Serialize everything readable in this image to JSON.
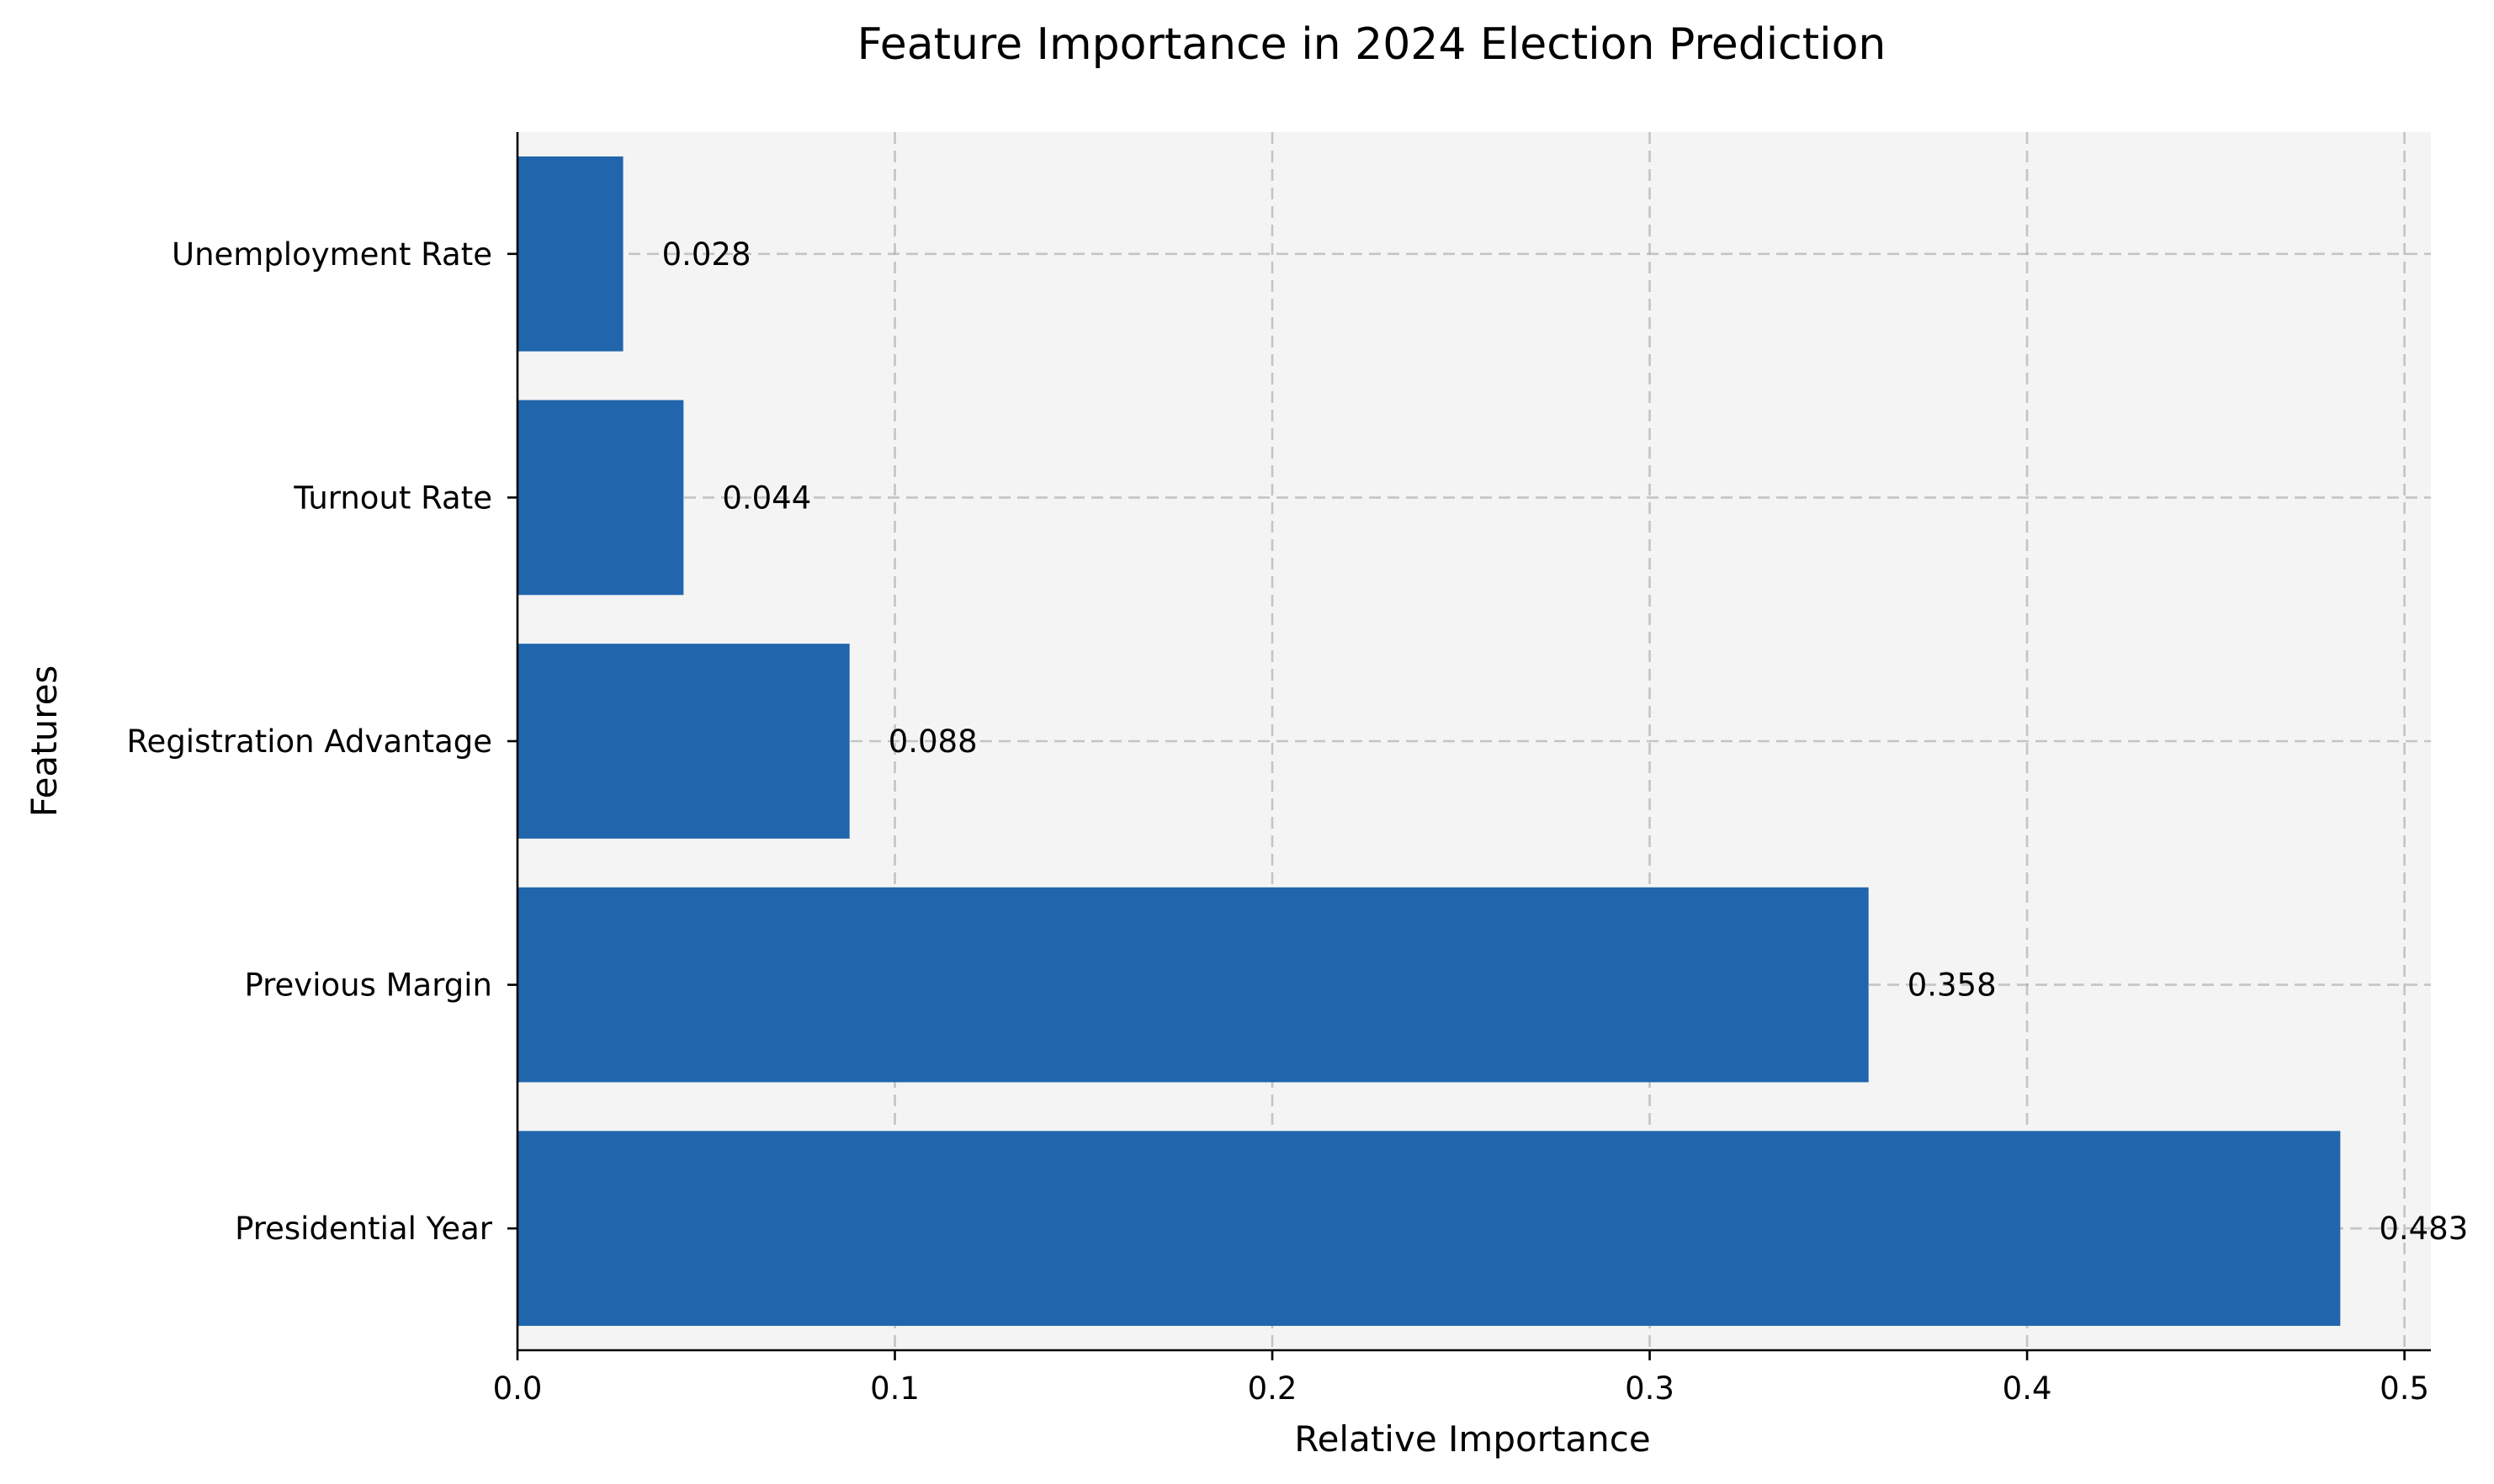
{
  "chart_data": {
    "type": "bar",
    "orientation": "horizontal",
    "title": "Feature Importance in 2024 Election Prediction",
    "xlabel": "Relative Importance",
    "ylabel": "Features",
    "categories": [
      "Presidential Year",
      "Previous Margin",
      "Registration Advantage",
      "Turnout Rate",
      "Unemployment Rate"
    ],
    "values": [
      0.483,
      0.358,
      0.088,
      0.044,
      0.028
    ],
    "value_labels": [
      "0.483",
      "0.358",
      "0.088",
      "0.044",
      "0.028"
    ],
    "xlim": [
      0,
      0.507
    ],
    "xticks": [
      0.0,
      0.1,
      0.2,
      0.3,
      0.4,
      0.5
    ],
    "xtick_labels": [
      "0.0",
      "0.1",
      "0.2",
      "0.3",
      "0.4",
      "0.5"
    ],
    "grid": true,
    "colors": {
      "bar": "#2166ac",
      "plot_background": "#f4f4f4",
      "grid": "#b0b0b0"
    }
  }
}
